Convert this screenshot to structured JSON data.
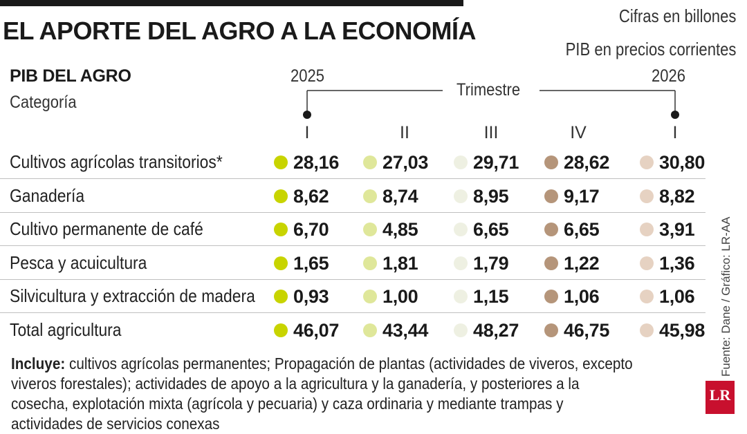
{
  "header": {
    "title": "EL APORTE DEL AGRO A LA ECONOMÍA",
    "unit_note": "Cifras en billones",
    "price_note": "PIB en precios corrientes"
  },
  "table_header": {
    "heading": "PIB DEL AGRO",
    "subheading": "Categoría",
    "year_start": "2025",
    "year_end": "2026",
    "period_label": "Trimestre",
    "quarters": [
      "I",
      "II",
      "III",
      "IV",
      "I"
    ]
  },
  "colors": {
    "q1_2025": "#c8d400",
    "q2_2025": "#dfe79a",
    "q3_2025": "#eef0e2",
    "q4_2025": "#b5957a",
    "q1_2026": "#e6d2c2"
  },
  "chart_data": {
    "type": "table",
    "title": "EL APORTE DEL AGRO A LA ECONOMÍA",
    "columns": [
      "2025 I",
      "2025 II",
      "2025 III",
      "2025 IV",
      "2026 I"
    ],
    "rows": [
      {
        "category": "Cultivos agrícolas transitorios*",
        "values": [
          "28,16",
          "27,03",
          "29,71",
          "28,62",
          "30,80"
        ]
      },
      {
        "category": "Ganadería",
        "values": [
          "8,62",
          "8,74",
          "8,95",
          "9,17",
          "8,82"
        ]
      },
      {
        "category": "Cultivo permanente de café",
        "values": [
          "6,70",
          "4,85",
          "6,65",
          "6,65",
          "3,91"
        ]
      },
      {
        "category": "Pesca y acuicultura",
        "values": [
          "1,65",
          "1,81",
          "1,79",
          "1,22",
          "1,36"
        ]
      },
      {
        "category": "Silvicultura y extracción de madera",
        "values": [
          "0,93",
          "1,00",
          "1,15",
          "1,06",
          "1,06"
        ]
      },
      {
        "category": "Total agricultura",
        "values": [
          "46,07",
          "43,44",
          "48,27",
          "46,75",
          "45,98"
        ]
      }
    ]
  },
  "footnote": {
    "lead": "Incluye:",
    "text": " cultivos agrícolas permanentes; Propagación de plantas (actividades de viveros, excepto viveros forestales); actividades de apoyo a la agricultura y la ganadería, y posteriores a la cosecha, explotación mixta (agrícola y pecuaria) y caza ordinaria y mediante trampas y actividades de servicios conexas"
  },
  "source": "Fuente: Dane / Gráfico: LR-AA",
  "logo": "LR"
}
